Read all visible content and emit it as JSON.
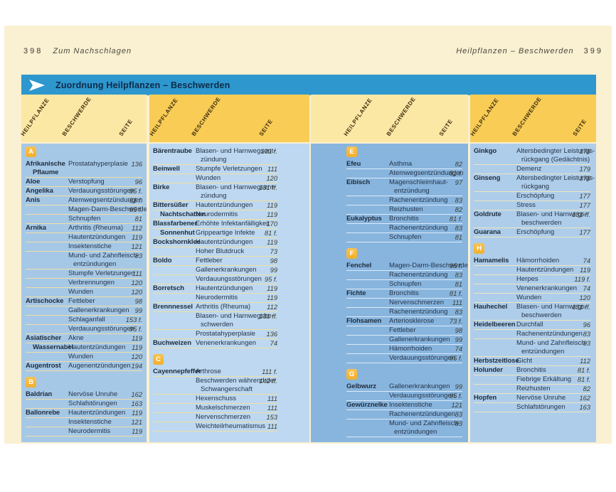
{
  "page_header": {
    "left_num": "398",
    "left_title": "Zum Nachschlagen",
    "right_title": "Heilpflanzen – Beschwerden",
    "right_num": "399"
  },
  "title_bar": {
    "label": "Zuordnung Heilpflanzen – Beschwerden",
    "arrow_icon": "right-arrow"
  },
  "column_header_labels": [
    "HEILPFLANZE",
    "BESCHWERDE",
    "SEITE"
  ],
  "colors": {
    "page_bg": "#FAF0D2",
    "title_bar_bg": "#2D97CE",
    "title_bar_text": "#0E2A47",
    "band_pale": "#FBE8A4",
    "band_gold": "#F8CC55",
    "badge_bg": "#F2AF2B",
    "block_bgs": [
      "#A6C8E7",
      "#BDD8F0",
      "#88B5DE",
      "#AECDEA"
    ],
    "divider_left_page": "#EFDFA4",
    "divider_right_page": "#DCEAF7"
  },
  "index_blocks": [
    {
      "sections": [
        {
          "letter": "A",
          "cells": [
            {
              "name": [
                "Afrikanische",
                "Pflaume"
              ],
              "text": [
                "Prostatahyperplasie"
              ],
              "page": "136"
            },
            {
              "name": [
                "Aloe"
              ],
              "text": [
                "Verstopfung"
              ],
              "page": "96"
            },
            {
              "name": [
                "Angelika"
              ],
              "text": [
                "Verdauungsstörungen"
              ],
              "page": "95 f."
            },
            {
              "name": [
                "Anis"
              ],
              "text": [
                "Atemwegsentzündungen"
              ],
              "page": "81 f."
            },
            {
              "text": [
                "Magen-Darm-Beschwerden"
              ],
              "page": "95 f."
            },
            {
              "text": [
                "Schnupfen"
              ],
              "page": "81"
            },
            {
              "name": [
                "Arnika"
              ],
              "text": [
                "Arthritis (Rheuma)"
              ],
              "page": "112"
            },
            {
              "text": [
                "Hautentzündungen"
              ],
              "page": "119"
            },
            {
              "text": [
                "Insektenstiche"
              ],
              "page": "121"
            },
            {
              "text": [
                "Mund- und Zahnfleisch-",
                "entzündungen"
              ],
              "page": "83"
            },
            {
              "text": [
                "Stumpfe Verletzungen"
              ],
              "page": "111"
            },
            {
              "text": [
                "Verbrennungen"
              ],
              "page": "120"
            },
            {
              "text": [
                "Wunden"
              ],
              "page": "120"
            },
            {
              "name": [
                "Artischocke"
              ],
              "text": [
                "Fettleber"
              ],
              "page": "98"
            },
            {
              "text": [
                "Gallenerkrankungen"
              ],
              "page": "99"
            },
            {
              "text": [
                "Schlaganfall"
              ],
              "page": "153 f."
            },
            {
              "text": [
                "Verdauungsstörungen"
              ],
              "page": "95 f."
            },
            {
              "name": [
                "Asiatischer"
              ],
              "text": [
                "Akne"
              ],
              "page": "119"
            },
            {
              "name": [
                "Wassernabel"
              ],
              "ni": true,
              "text": [
                "Hautentzündungen"
              ],
              "page": "119"
            },
            {
              "text": [
                "Wunden"
              ],
              "page": "120"
            },
            {
              "name": [
                "Augentrost"
              ],
              "text": [
                "Augenentzündungen"
              ],
              "page": "194"
            }
          ]
        },
        {
          "letter": "B",
          "cells": [
            {
              "name": [
                "Baldrian"
              ],
              "text": [
                "Nervöse Unruhe"
              ],
              "page": "162"
            },
            {
              "text": [
                "Schlafstörungen"
              ],
              "page": "163"
            },
            {
              "name": [
                "Ballonrebe"
              ],
              "text": [
                "Hautentzündungen"
              ],
              "page": "119"
            },
            {
              "text": [
                "Insektenstiche"
              ],
              "page": "121"
            },
            {
              "text": [
                "Neurodermitis"
              ],
              "page": "119"
            }
          ]
        }
      ]
    },
    {
      "sections": [
        {
          "letter": null,
          "cells": [
            {
              "name": [
                "Bärentraube"
              ],
              "text": [
                "Blasen- und Harnwegsent-",
                "zündung"
              ],
              "page": "131 f."
            },
            {
              "name": [
                "Beinwell"
              ],
              "text": [
                "Stumpfe Verletzungen"
              ],
              "page": "111"
            },
            {
              "text": [
                "Wunden"
              ],
              "page": "120"
            },
            {
              "name": [
                "Birke"
              ],
              "text": [
                "Blasen- und Harnwegsent-",
                "zündung"
              ],
              "page": "131 ff."
            },
            {
              "name": [
                "Bittersüßer"
              ],
              "text": [
                "Hautentzündungen"
              ],
              "page": "119"
            },
            {
              "name": [
                "Nachtschatten"
              ],
              "ni": true,
              "text": [
                "Neurodermitis"
              ],
              "page": "119"
            },
            {
              "name": [
                "Blassfarbener"
              ],
              "text": [
                "Erhöhte Infektanfälligkeit"
              ],
              "page": "170"
            },
            {
              "name": [
                "Sonnenhut"
              ],
              "ni": true,
              "text": [
                "Grippeartige Infekte"
              ],
              "page": "81 f."
            },
            {
              "name": [
                "Bockshornklee"
              ],
              "text": [
                "Hautentzündungen"
              ],
              "page": "119"
            },
            {
              "text": [
                "Hoher Blutdruck"
              ],
              "page": "73"
            },
            {
              "name": [
                "Boldo"
              ],
              "text": [
                "Fettleber"
              ],
              "page": "98"
            },
            {
              "text": [
                "Gallenerkrankungen"
              ],
              "page": "99"
            },
            {
              "text": [
                "Verdauungsstörungen"
              ],
              "page": "95 f."
            },
            {
              "name": [
                "Borretsch"
              ],
              "text": [
                "Hautentzündungen"
              ],
              "page": "119"
            },
            {
              "text": [
                "Neurodermitis"
              ],
              "page": "119"
            },
            {
              "name": [
                "Brennnessel"
              ],
              "text": [
                "Arthritis (Rheuma)"
              ],
              "page": "112"
            },
            {
              "text": [
                "Blasen- und Harnwegsbe-",
                "schwerden"
              ],
              "page": "131 ff."
            },
            {
              "text": [
                "Prostatahyperplasie"
              ],
              "page": "136"
            },
            {
              "name": [
                "Buchweizen"
              ],
              "text": [
                "Venenerkrankungen"
              ],
              "page": "74"
            }
          ]
        },
        {
          "letter": "C",
          "cells": [
            {
              "name": [
                "Cayennepfeffer"
              ],
              "text": [
                "Arthrose"
              ],
              "page": "111 f."
            },
            {
              "text": [
                "Beschwerden während der",
                "Schwangerschaft"
              ],
              "page": "142 ff."
            },
            {
              "text": [
                "Hexenschuss"
              ],
              "page": "111"
            },
            {
              "text": [
                "Muskelschmerzen"
              ],
              "page": "111"
            },
            {
              "text": [
                "Nervenschmerzen"
              ],
              "page": "153"
            },
            {
              "text": [
                "Weichteilrheumatismus"
              ],
              "page": "111"
            }
          ]
        }
      ]
    },
    {
      "sections": [
        {
          "letter": "E",
          "cells": [
            {
              "name": [
                "Efeu"
              ],
              "text": [
                "Asthma"
              ],
              "page": "82"
            },
            {
              "text": [
                "Atemwegsentzündungen"
              ],
              "page": "81 f."
            },
            {
              "name": [
                "Eibisch"
              ],
              "text": [
                "Magenschleimhaut-",
                "entzündung"
              ],
              "page": "97"
            },
            {
              "text": [
                "Rachenentzündung"
              ],
              "page": "83"
            },
            {
              "text": [
                "Reizhusten"
              ],
              "page": "82"
            },
            {
              "name": [
                "Eukalyptus"
              ],
              "text": [
                "Bronchitis"
              ],
              "page": "81 f."
            },
            {
              "text": [
                "Rachenentzündung"
              ],
              "page": "83"
            },
            {
              "text": [
                "Schnupfen"
              ],
              "page": "81"
            }
          ]
        },
        {
          "letter": "F",
          "cells": [
            {
              "name": [
                "Fenchel"
              ],
              "text": [
                "Magen-Darm-Beschwerden"
              ],
              "page": "95 f."
            },
            {
              "text": [
                "Rachenentzündung"
              ],
              "page": "83"
            },
            {
              "text": [
                "Schnupfen"
              ],
              "page": "81"
            },
            {
              "name": [
                "Fichte"
              ],
              "text": [
                "Bronchitis"
              ],
              "page": "81 f."
            },
            {
              "text": [
                "Nervenschmerzen"
              ],
              "page": "111"
            },
            {
              "text": [
                "Rachenentzündung"
              ],
              "page": "83"
            },
            {
              "name": [
                "Flohsamen"
              ],
              "text": [
                "Arteriosklerose"
              ],
              "page": "73 f."
            },
            {
              "text": [
                "Fettleber"
              ],
              "page": "98"
            },
            {
              "text": [
                "Gallenerkrankungen"
              ],
              "page": "99"
            },
            {
              "text": [
                "Hämorrhoiden"
              ],
              "page": "74"
            },
            {
              "text": [
                "Verdauungsstörungen"
              ],
              "page": "95 f."
            }
          ]
        },
        {
          "letter": "G",
          "cells": [
            {
              "name": [
                "Gelbwurz"
              ],
              "text": [
                "Gallenerkrankungen"
              ],
              "page": "99"
            },
            {
              "text": [
                "Verdauungsstörungen"
              ],
              "page": "95 f."
            },
            {
              "name": [
                "Gewürznelke"
              ],
              "text": [
                "Insektenstiche"
              ],
              "page": "121"
            },
            {
              "text": [
                "Rachenentzündungen"
              ],
              "page": "83"
            },
            {
              "text": [
                "Mund- und Zahnfleisch-",
                "entzündungen"
              ],
              "page": "83"
            }
          ]
        }
      ]
    },
    {
      "sections": [
        {
          "letter": null,
          "cells": [
            {
              "name": [
                "Ginkgo"
              ],
              "text": [
                "Altersbedingter Leistungs-",
                "rückgang (Gedächtnis)"
              ],
              "page": "178"
            },
            {
              "text": [
                "Demenz"
              ],
              "page": "179"
            },
            {
              "name": [
                "Ginseng"
              ],
              "text": [
                "Altersbedingter Leistungs-",
                "rückgang"
              ],
              "page": "178"
            },
            {
              "text": [
                "Erschöpfung"
              ],
              "page": "177"
            },
            {
              "text": [
                "Stress"
              ],
              "page": "177"
            },
            {
              "name": [
                "Goldrute"
              ],
              "text": [
                "Blasen- und Harnwegs-",
                "beschwerden"
              ],
              "page": "131 ff."
            },
            {
              "name": [
                "Guarana"
              ],
              "text": [
                "Erschöpfung"
              ],
              "page": "177"
            }
          ]
        },
        {
          "letter": "H",
          "cells": [
            {
              "name": [
                "Hamamelis"
              ],
              "text": [
                "Hämorrhoiden"
              ],
              "page": "74"
            },
            {
              "text": [
                "Hautentzündungen"
              ],
              "page": "119"
            },
            {
              "text": [
                "Herpes"
              ],
              "page": "119 f."
            },
            {
              "text": [
                "Venenerkrankungen"
              ],
              "page": "74"
            },
            {
              "text": [
                "Wunden"
              ],
              "page": "120"
            },
            {
              "name": [
                "Hauhechel"
              ],
              "text": [
                "Blasen- und Harnwegs-",
                "beschwerden"
              ],
              "page": "131 ff."
            },
            {
              "name": [
                "Heidelbeeren"
              ],
              "text": [
                "Durchfall"
              ],
              "page": "96"
            },
            {
              "text": [
                "Rachenentzündungen"
              ],
              "page": "83"
            },
            {
              "text": [
                "Mund- und Zahnfleisch-",
                "entzündungen"
              ],
              "page": "83"
            },
            {
              "name": [
                "Herbstzeitlose"
              ],
              "text": [
                "Gicht"
              ],
              "page": "112"
            },
            {
              "name": [
                "Holunder"
              ],
              "text": [
                "Bronchitis"
              ],
              "page": "81 f."
            },
            {
              "text": [
                "Fiebrige Erkältung"
              ],
              "page": "81 f."
            },
            {
              "text": [
                "Reizhusten"
              ],
              "page": "82"
            },
            {
              "name": [
                "Hopfen"
              ],
              "text": [
                "Nervöse Unruhe"
              ],
              "page": "162"
            },
            {
              "text": [
                "Schlafstörungen"
              ],
              "page": "163"
            }
          ]
        }
      ]
    }
  ]
}
